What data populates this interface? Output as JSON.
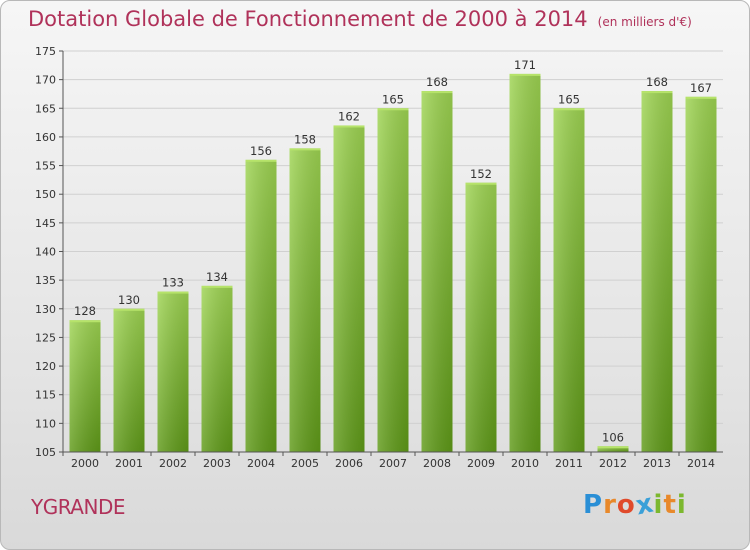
{
  "title": "Dotation Globale de Fonctionnement de 2000 à 2014",
  "subtitle": "(en milliers d'€)",
  "commune": "YGRANDE",
  "logo": {
    "letters": [
      "P",
      "r",
      "o",
      "x",
      "i",
      "t",
      "i"
    ],
    "colors": [
      "#2a8fd6",
      "#e8892b",
      "#e04a2b",
      "#3aa0d8",
      "#7cb82f",
      "#e8892b",
      "#7cb82f"
    ]
  },
  "colors": {
    "title": "#b0325a",
    "bar_light": "#9ed452",
    "bar_dark": "#5f9a18",
    "axis": "#555555",
    "grid": "#d0d0d0"
  },
  "chart_data": {
    "type": "bar",
    "categories": [
      "2000",
      "2001",
      "2002",
      "2003",
      "2004",
      "2005",
      "2006",
      "2007",
      "2008",
      "2009",
      "2010",
      "2011",
      "2012",
      "2013",
      "2014"
    ],
    "values": [
      128,
      130,
      133,
      134,
      156,
      158,
      162,
      165,
      168,
      152,
      171,
      165,
      106,
      168,
      167
    ],
    "ylim": [
      105,
      175
    ],
    "yticks": [
      105,
      110,
      115,
      120,
      125,
      130,
      135,
      140,
      145,
      150,
      155,
      160,
      165,
      170,
      175
    ],
    "grid": true
  }
}
